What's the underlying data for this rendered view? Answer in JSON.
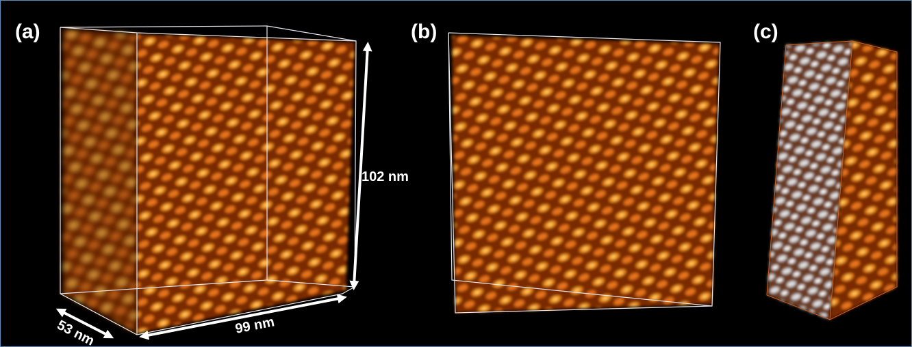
{
  "panels": [
    {
      "label": "(a)"
    },
    {
      "label": "(b)"
    },
    {
      "label": "(c)"
    }
  ],
  "dimensions": {
    "height": "102 nm",
    "width": "99 nm",
    "depth": "53 nm"
  }
}
